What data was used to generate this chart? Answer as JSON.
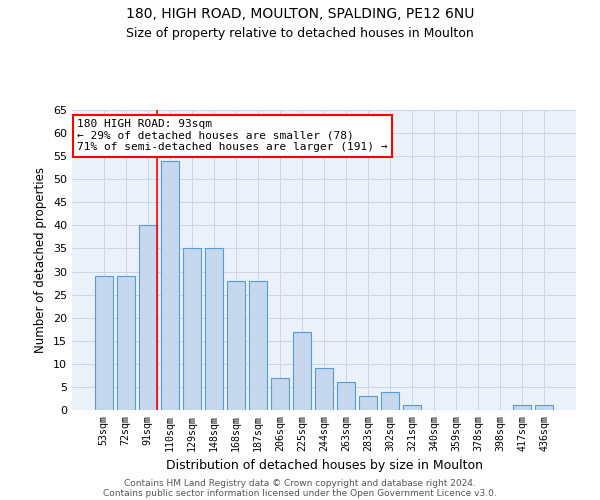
{
  "title1": "180, HIGH ROAD, MOULTON, SPALDING, PE12 6NU",
  "title2": "Size of property relative to detached houses in Moulton",
  "xlabel": "Distribution of detached houses by size in Moulton",
  "ylabel": "Number of detached properties",
  "categories": [
    "53sqm",
    "72sqm",
    "91sqm",
    "110sqm",
    "129sqm",
    "148sqm",
    "168sqm",
    "187sqm",
    "206sqm",
    "225sqm",
    "244sqm",
    "263sqm",
    "283sqm",
    "302sqm",
    "321sqm",
    "340sqm",
    "359sqm",
    "378sqm",
    "398sqm",
    "417sqm",
    "436sqm"
  ],
  "values": [
    29,
    29,
    40,
    54,
    35,
    35,
    28,
    28,
    7,
    17,
    9,
    6,
    3,
    4,
    1,
    0,
    0,
    0,
    0,
    1,
    1
  ],
  "bar_color": "#c5d8ed",
  "bar_edge_color": "#5b9bd5",
  "grid_color": "#c8d8e8",
  "background_color": "#eaf1f8",
  "red_line_index": 2,
  "annotation_text": "180 HIGH ROAD: 93sqm\n← 29% of detached houses are smaller (78)\n71% of semi-detached houses are larger (191) →",
  "annotation_box_color": "white",
  "annotation_box_edge": "red",
  "ylim": [
    0,
    65
  ],
  "yticks": [
    0,
    5,
    10,
    15,
    20,
    25,
    30,
    35,
    40,
    45,
    50,
    55,
    60,
    65
  ],
  "footer1": "Contains HM Land Registry data © Crown copyright and database right 2024.",
  "footer2": "Contains public sector information licensed under the Open Government Licence v3.0."
}
